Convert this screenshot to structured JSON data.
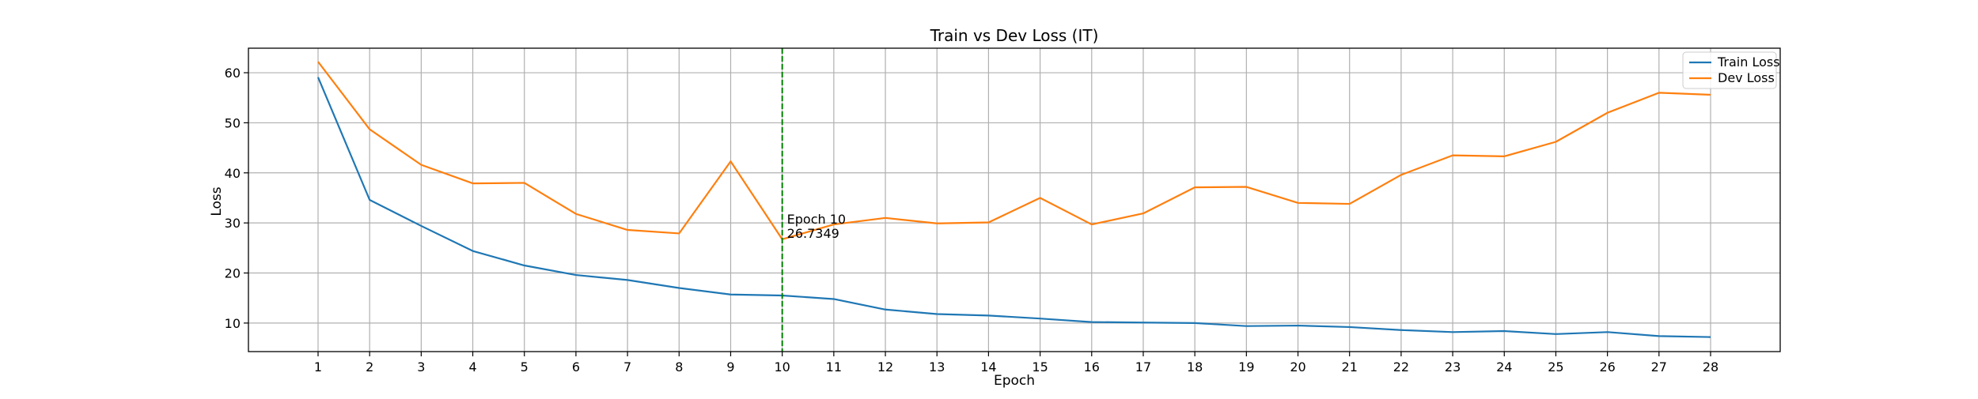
{
  "chart_data": {
    "type": "line",
    "title": "Train vs Dev Loss (IT)",
    "xlabel": "Epoch",
    "ylabel": "Loss",
    "x": [
      1,
      2,
      3,
      4,
      5,
      6,
      7,
      8,
      9,
      10,
      11,
      12,
      13,
      14,
      15,
      16,
      17,
      18,
      19,
      20,
      21,
      22,
      23,
      24,
      25,
      26,
      27,
      28
    ],
    "xlim": [
      -0.35,
      29.35
    ],
    "ylim": [
      4.3,
      64.9
    ],
    "yticks": [
      10,
      20,
      30,
      40,
      50,
      60
    ],
    "grid": true,
    "legend_position": "top-right",
    "series": [
      {
        "name": "Train Loss",
        "color": "#1f77b4",
        "values": [
          59.1,
          34.6,
          29.4,
          24.4,
          21.5,
          19.6,
          18.6,
          17.0,
          15.7,
          15.5,
          14.8,
          12.7,
          11.8,
          11.5,
          10.9,
          10.2,
          10.1,
          10.0,
          9.4,
          9.5,
          9.2,
          8.6,
          8.2,
          8.4,
          7.8,
          8.2,
          7.4,
          7.2
        ]
      },
      {
        "name": "Dev Loss",
        "color": "#ff7f0e",
        "values": [
          62.2,
          48.7,
          41.6,
          37.9,
          38.0,
          31.8,
          28.6,
          27.9,
          42.3,
          26.7349,
          29.7,
          31.0,
          29.9,
          30.1,
          35.0,
          29.7,
          31.9,
          37.1,
          37.2,
          34.0,
          33.8,
          39.6,
          43.5,
          43.3,
          46.2,
          52.0,
          56.0,
          55.6
        ]
      }
    ],
    "annotation": {
      "x": 10,
      "y": 26.7349,
      "label_line1": "Epoch 10",
      "label_line2": "26.7349",
      "line_color": "#008000"
    }
  }
}
